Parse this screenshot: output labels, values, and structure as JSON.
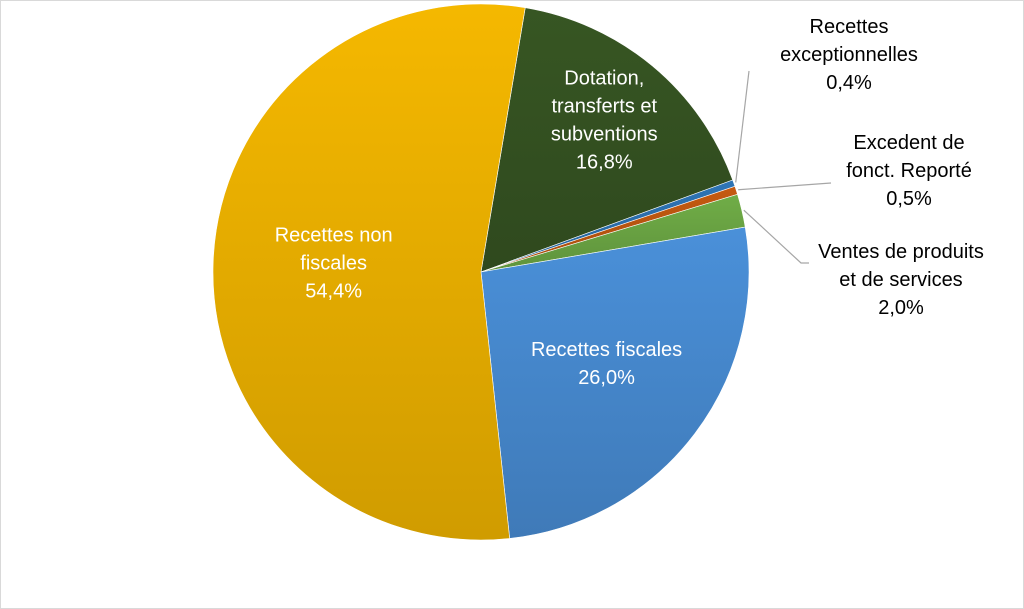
{
  "chart_data": {
    "type": "pie",
    "title": "",
    "slices": [
      {
        "lines": [
          "Dotation,",
          "transferts et",
          "subventions"
        ],
        "value": 16.8,
        "value_label": "16,8%",
        "color": "#375623",
        "label_color": "#ffffff"
      },
      {
        "lines": [
          "Recettes",
          "exceptionnelles"
        ],
        "value": 0.4,
        "value_label": "0,4%",
        "color": "#2e75b6",
        "label_color": "#000000"
      },
      {
        "lines": [
          "Excedent de",
          "fonct. Reporté"
        ],
        "value": 0.5,
        "value_label": "0,5%",
        "color": "#c55a11",
        "label_color": "#000000"
      },
      {
        "lines": [
          "Ventes de produits",
          "et de services"
        ],
        "value": 2.0,
        "value_label": "2,0%",
        "color": "#70ad47",
        "label_color": "#000000"
      },
      {
        "lines": [
          "Recettes fiscales"
        ],
        "value": 26.0,
        "value_label": "26,0%",
        "color": "#4a90d9",
        "label_color": "#ffffff"
      },
      {
        "lines": [
          "Recettes non",
          "fiscales"
        ],
        "value": 54.4,
        "value_label": "54,4%",
        "color": "#f5b800",
        "label_color": "#ffffff"
      }
    ],
    "legend": "none"
  }
}
